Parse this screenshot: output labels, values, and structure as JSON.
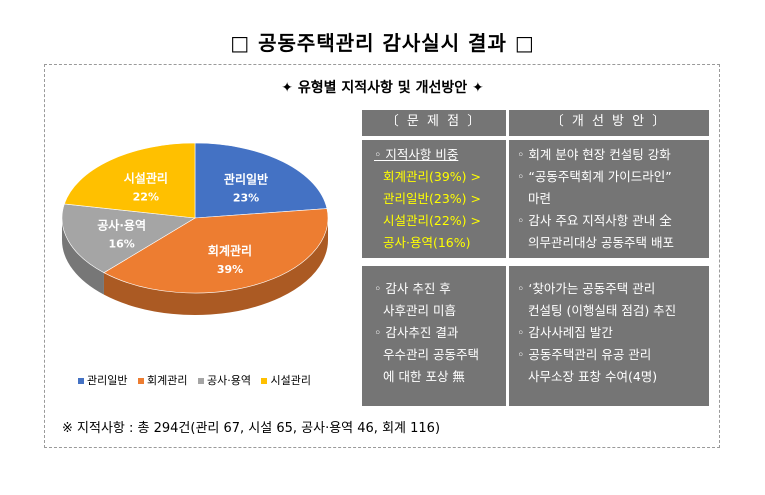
{
  "title": "□ 공동주택관리 감사실시 결과 □",
  "subtitle": "✦ 유형별 지적사항 및 개선방안 ✦",
  "chart_data": {
    "type": "pie",
    "categories": [
      "관리일반",
      "회계관리",
      "공사·용역",
      "시설관리"
    ],
    "values": [
      23,
      39,
      16,
      22
    ],
    "labels": [
      "23%",
      "39%",
      "16%",
      "22%"
    ],
    "colors": [
      "#4472C4",
      "#ED7D31",
      "#A5A5A5",
      "#FFC000"
    ],
    "legend": "bottom"
  },
  "problems": {
    "header": "〔 문 제 점 〕",
    "block1": [
      "◦ 지적사항 비중",
      "회계관리(39%) >",
      "관리일반(23%) >",
      "시설관리(22%) >",
      "공사·용역(16%)"
    ],
    "block2": [
      "◦ 감사 추진 후",
      "사후관리 미흡",
      "◦ 감사추진 결과",
      "우수관리 공동주택",
      "에 대한 포상 無"
    ]
  },
  "improvements": {
    "header": "〔 개 선 방 안 〕",
    "block1": [
      "◦ 회계 분야 현장 컨설팅 강화",
      "◦ “공동주택회계 가이드라인”",
      "마련",
      "◦ 감사 주요 지적사항 관내 全",
      "의무관리대상 공동주택 배포"
    ],
    "block2": [
      "◦ ‘찾아가는 공동주택 관리",
      "컨설팅 (이행실태 점검) 추진",
      "◦ 감사사례집 발간",
      "◦ 공동주택관리 유공 관리",
      "사무소장 표창 수여(4명)"
    ]
  },
  "footnote": "※ 지적사항 : 총 294건(관리 67, 시설 65, 공사·용역 46, 회계 116)"
}
